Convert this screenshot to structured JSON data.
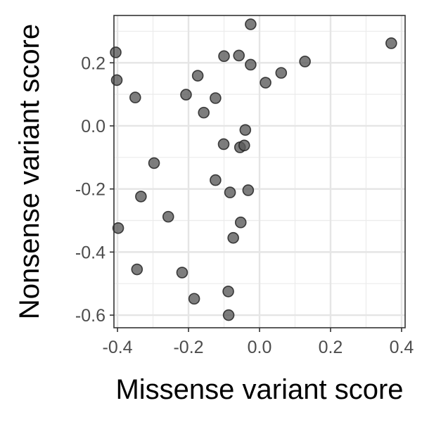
{
  "chart_data": {
    "type": "scatter",
    "xlabel": "Missense variant score",
    "ylabel": "Nonsense variant score",
    "xlim": [
      -0.41,
      0.41
    ],
    "ylim": [
      -0.64,
      0.35
    ],
    "x_ticks": [
      -0.4,
      -0.2,
      0.0,
      0.2,
      0.4
    ],
    "x_tick_labels": [
      "-0.4",
      "-0.2",
      "0.0",
      "0.2",
      "0.4"
    ],
    "y_ticks": [
      -0.6,
      -0.4,
      -0.2,
      0.0,
      0.2
    ],
    "y_tick_labels": [
      "-0.6",
      "-0.4",
      "-0.2",
      "0.0",
      "0.2"
    ],
    "grid": true,
    "point_color": "#595959",
    "point_outline": "#1a1a1a",
    "points": [
      {
        "x": -0.025,
        "y": 0.322
      },
      {
        "x": -0.405,
        "y": 0.233
      },
      {
        "x": 0.371,
        "y": 0.262
      },
      {
        "x": -0.1,
        "y": 0.221
      },
      {
        "x": -0.058,
        "y": 0.223
      },
      {
        "x": -0.025,
        "y": 0.194
      },
      {
        "x": 0.128,
        "y": 0.204
      },
      {
        "x": -0.402,
        "y": 0.145
      },
      {
        "x": -0.174,
        "y": 0.159
      },
      {
        "x": 0.061,
        "y": 0.168
      },
      {
        "x": 0.017,
        "y": 0.137
      },
      {
        "x": -0.35,
        "y": 0.09
      },
      {
        "x": -0.207,
        "y": 0.099
      },
      {
        "x": -0.124,
        "y": 0.088
      },
      {
        "x": -0.157,
        "y": 0.042
      },
      {
        "x": -0.04,
        "y": -0.013
      },
      {
        "x": -0.101,
        "y": -0.058
      },
      {
        "x": -0.055,
        "y": -0.068
      },
      {
        "x": -0.043,
        "y": -0.062
      },
      {
        "x": -0.297,
        "y": -0.118
      },
      {
        "x": -0.124,
        "y": -0.172
      },
      {
        "x": -0.083,
        "y": -0.211
      },
      {
        "x": -0.032,
        "y": -0.204
      },
      {
        "x": -0.334,
        "y": -0.224
      },
      {
        "x": -0.257,
        "y": -0.288
      },
      {
        "x": -0.398,
        "y": -0.324
      },
      {
        "x": -0.053,
        "y": -0.306
      },
      {
        "x": -0.074,
        "y": -0.355
      },
      {
        "x": -0.345,
        "y": -0.455
      },
      {
        "x": -0.218,
        "y": -0.465
      },
      {
        "x": -0.088,
        "y": -0.525
      },
      {
        "x": -0.184,
        "y": -0.548
      },
      {
        "x": -0.087,
        "y": -0.6
      }
    ]
  }
}
